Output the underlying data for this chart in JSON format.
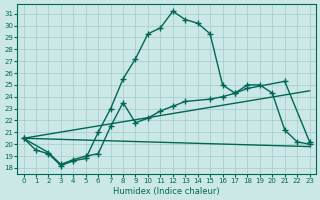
{
  "xlabel": "Humidex (Indice chaleur)",
  "xlim": [
    -0.5,
    23.5
  ],
  "ylim": [
    17.5,
    31.8
  ],
  "xticks": [
    0,
    1,
    2,
    3,
    4,
    5,
    6,
    7,
    8,
    9,
    10,
    11,
    12,
    13,
    14,
    15,
    16,
    17,
    18,
    19,
    20,
    21,
    22,
    23
  ],
  "yticks": [
    18,
    19,
    20,
    21,
    22,
    23,
    24,
    25,
    26,
    27,
    28,
    29,
    30,
    31
  ],
  "bg_color": "#cce8e6",
  "grid_color": "#a0ccca",
  "line_color": "#006655",
  "line1_x": [
    0,
    1,
    2,
    3,
    4,
    5,
    6,
    7,
    8,
    9,
    10,
    11,
    12,
    13,
    14,
    15,
    16,
    17,
    18,
    19,
    20,
    21,
    22,
    23
  ],
  "line1_y": [
    20.5,
    19.5,
    19.2,
    18.2,
    18.6,
    18.8,
    21.0,
    23.0,
    25.5,
    27.2,
    29.3,
    29.8,
    31.2,
    30.5,
    30.2,
    29.3,
    25.0,
    24.3,
    25.0,
    25.0,
    24.3,
    21.2,
    20.2,
    20.0
  ],
  "line2_x": [
    0,
    2,
    3,
    4,
    5,
    6,
    7,
    8,
    9,
    10,
    11,
    12,
    13,
    15,
    16,
    17,
    18,
    21,
    23
  ],
  "line2_y": [
    20.5,
    19.3,
    18.3,
    18.7,
    19.0,
    19.2,
    21.5,
    23.5,
    21.8,
    22.2,
    22.8,
    23.2,
    23.6,
    23.8,
    24.0,
    24.3,
    24.7,
    25.3,
    20.2
  ],
  "line3_x": [
    0,
    23
  ],
  "line3_y": [
    20.5,
    24.5
  ],
  "line4_x": [
    0,
    23
  ],
  "line4_y": [
    20.5,
    19.8
  ],
  "marker": "+",
  "markersize": 4,
  "markeredgewidth": 1.0,
  "linewidth": 1.0,
  "ticklabelsize": 5,
  "xlabel_fontsize": 6
}
